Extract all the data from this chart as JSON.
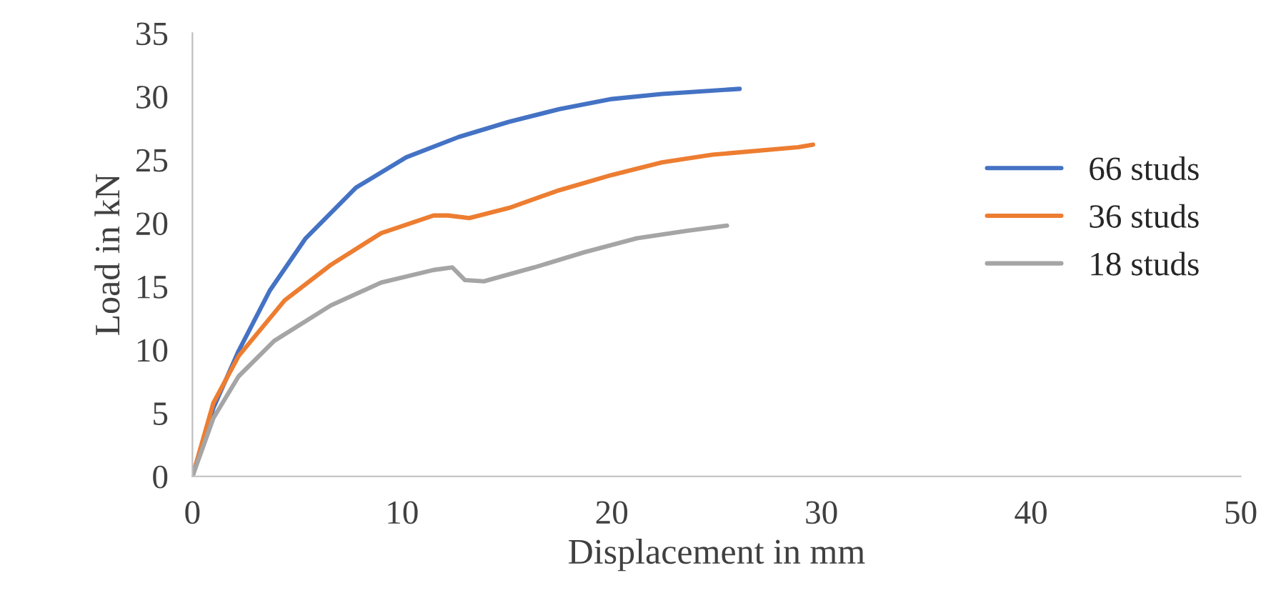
{
  "chart_data": {
    "type": "line",
    "xlabel": "Displacement in mm",
    "ylabel": "Load in kN",
    "xlim": [
      0,
      50
    ],
    "xticks": [
      0,
      10,
      20,
      30,
      40,
      50
    ],
    "ylim": [
      0,
      35
    ],
    "yticks": [
      0,
      5,
      10,
      15,
      20,
      25,
      30,
      35
    ],
    "grid": false,
    "legend": "right",
    "marker": "none",
    "line_style": "solid",
    "series": [
      {
        "name": "66 studs",
        "color": "#4472c4",
        "x": [
          0,
          1.0,
          2.2,
          3.7,
          5.4,
          7.8,
          10.2,
          12.7,
          15.1,
          17.5,
          20.0,
          22.4,
          26.1
        ],
        "values": [
          0,
          5.4,
          9.9,
          14.7,
          18.8,
          22.8,
          25.2,
          26.8,
          28.0,
          29.0,
          29.8,
          30.2,
          30.6
        ]
      },
      {
        "name": "36 studs",
        "color": "#ed7d31",
        "x": [
          0,
          1.0,
          2.2,
          4.4,
          6.6,
          9.0,
          11.5,
          12.2,
          13.2,
          15.1,
          17.5,
          20.0,
          22.4,
          24.8,
          28.9,
          29.6
        ],
        "values": [
          0,
          5.8,
          9.5,
          13.9,
          16.7,
          19.2,
          20.6,
          20.6,
          20.4,
          21.2,
          22.6,
          23.8,
          24.8,
          25.4,
          26.0,
          26.2
        ]
      },
      {
        "name": "18 studs",
        "color": "#a5a5a5",
        "x": [
          0,
          1.0,
          2.2,
          3.9,
          6.6,
          9.0,
          11.5,
          12.4,
          13.0,
          13.9,
          16.3,
          18.7,
          21.2,
          23.6,
          25.5
        ],
        "values": [
          0,
          4.6,
          7.9,
          10.7,
          13.5,
          15.3,
          16.3,
          16.5,
          15.5,
          15.4,
          16.5,
          17.7,
          18.8,
          19.4,
          19.8
        ]
      }
    ]
  }
}
